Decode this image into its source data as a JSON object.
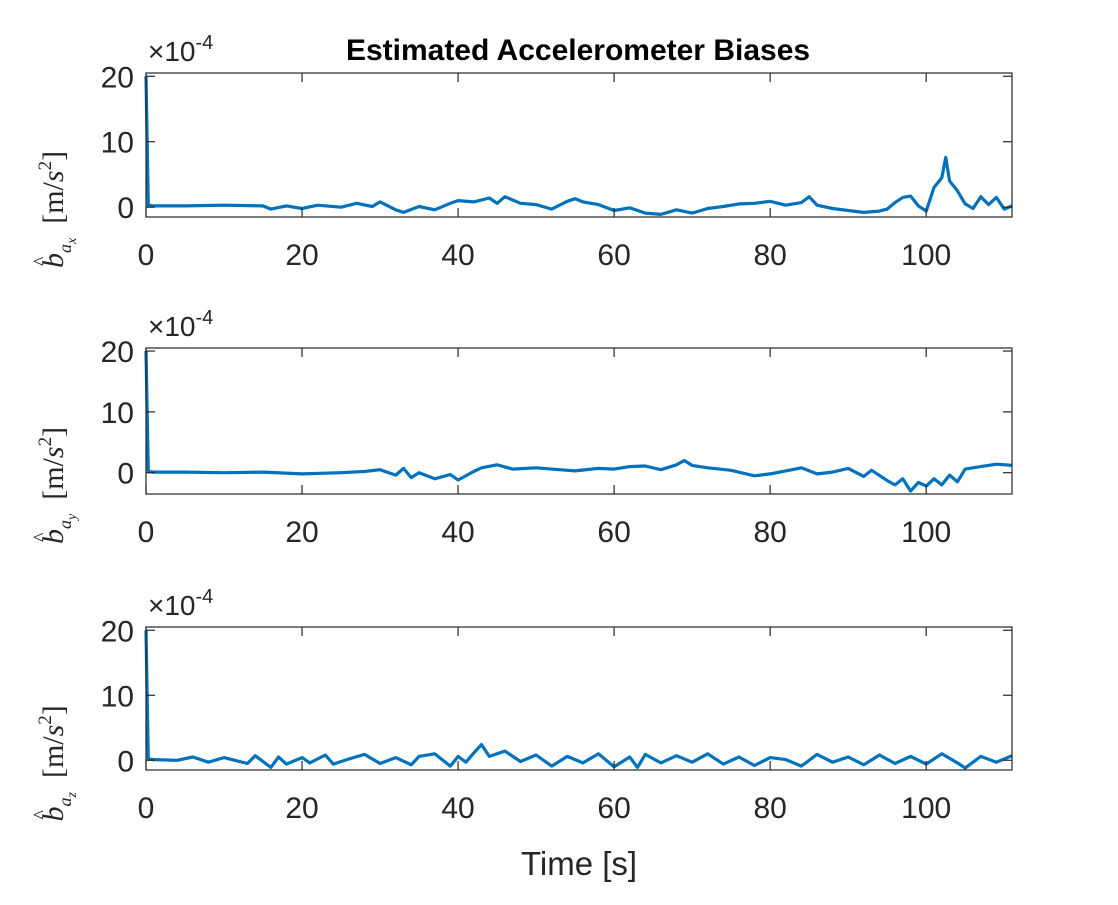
{
  "chart_data": {
    "type": "line",
    "title": "Estimated Accelerometer Biases",
    "xlabel": "Time [s]",
    "xlim": [
      0,
      111
    ],
    "x_ticks": [
      0,
      20,
      40,
      60,
      80,
      100
    ],
    "y_ticks": [
      0,
      10,
      20
    ],
    "y_multiplier": "×10",
    "y_multiplier_exp": "-4",
    "line_color": "#0072BD",
    "subplots": [
      {
        "ylabel": {
          "hat": "b",
          "sub": "a",
          "sub2": "x",
          "unit_open": "[m/",
          "unit_s": "s",
          "unit_exp": "2",
          "unit_close": "]"
        },
        "ylim": [
          -1.5,
          20.5
        ],
        "series": [
          {
            "x": [
              0,
              0.3,
              1,
              5,
              10,
              15,
              16,
              18,
              20,
              22,
              25,
              27,
              29,
              30,
              32,
              33,
              35,
              37,
              39,
              40,
              42,
              44,
              45,
              46,
              48,
              50,
              52,
              54,
              55,
              56,
              58,
              60,
              62,
              64,
              66,
              68,
              70,
              72,
              74,
              76,
              78,
              80,
              82,
              84,
              85,
              86,
              88,
              90,
              92,
              94,
              95,
              96,
              97,
              98,
              99,
              100,
              101,
              102,
              102.5,
              103,
              104,
              105,
              106,
              107,
              108,
              109,
              110,
              111
            ],
            "y": [
              20,
              0.3,
              0.2,
              0.2,
              0.3,
              0.2,
              -0.3,
              0.2,
              -0.2,
              0.3,
              0.0,
              0.6,
              0.1,
              0.8,
              -0.4,
              -0.8,
              0.1,
              -0.4,
              0.6,
              1.0,
              0.8,
              1.4,
              0.6,
              1.6,
              0.6,
              0.4,
              -0.3,
              0.9,
              1.3,
              0.8,
              0.4,
              -0.5,
              -0.1,
              -0.9,
              -1.1,
              -0.4,
              -0.9,
              -0.2,
              0.1,
              0.5,
              0.6,
              0.9,
              0.3,
              0.7,
              1.6,
              0.3,
              -0.2,
              -0.5,
              -0.8,
              -0.6,
              -0.3,
              0.7,
              1.5,
              1.7,
              0.2,
              -0.6,
              3.0,
              4.5,
              7.6,
              4.0,
              2.5,
              0.5,
              -0.2,
              1.6,
              0.4,
              1.5,
              -0.3,
              0.2
            ]
          }
        ]
      },
      {
        "ylabel": {
          "hat": "b",
          "sub": "a",
          "sub2": "y",
          "unit_open": "[m/",
          "unit_s": "s",
          "unit_exp": "2",
          "unit_close": "]"
        },
        "ylim": [
          -3.5,
          20.5
        ],
        "series": [
          {
            "x": [
              0,
              0.3,
              1,
              5,
              10,
              15,
              20,
              25,
              28,
              30,
              32,
              33,
              34,
              35,
              37,
              39,
              40,
              42,
              43,
              45,
              47,
              50,
              53,
              55,
              58,
              60,
              62,
              64,
              66,
              68,
              69,
              70,
              72,
              75,
              78,
              80,
              82,
              84,
              86,
              88,
              90,
              92,
              93,
              95,
              96,
              97,
              98,
              99,
              100,
              101,
              102,
              103,
              104,
              105,
              107,
              109,
              111
            ],
            "y": [
              20,
              0.2,
              0.1,
              0.1,
              0.0,
              0.1,
              -0.2,
              0.0,
              0.2,
              0.5,
              -0.4,
              0.7,
              -0.8,
              0.0,
              -1.0,
              -0.3,
              -1.2,
              0.2,
              0.8,
              1.3,
              0.6,
              0.8,
              0.5,
              0.3,
              0.7,
              0.6,
              1.0,
              1.1,
              0.5,
              1.3,
              2.0,
              1.2,
              0.8,
              0.4,
              -0.5,
              -0.2,
              0.3,
              0.8,
              -0.2,
              0.1,
              0.7,
              -0.6,
              0.4,
              -1.3,
              -2.0,
              -1.0,
              -3.0,
              -1.6,
              -2.2,
              -1.0,
              -2.0,
              -0.4,
              -1.5,
              0.6,
              1.0,
              1.4,
              1.2
            ]
          }
        ]
      },
      {
        "ylabel": {
          "hat": "b",
          "sub": "a",
          "sub2": "z",
          "unit_open": "[m/",
          "unit_s": "s",
          "unit_exp": "2",
          "unit_close": "]"
        },
        "ylim": [
          -1.5,
          20.5
        ],
        "series": [
          {
            "x": [
              0,
              0.3,
              1,
              4,
              6,
              8,
              10,
              13,
              14,
              16,
              17,
              18,
              20,
              21,
              23,
              24,
              26,
              28,
              30,
              32,
              34,
              35,
              37,
              39,
              40,
              41,
              42,
              43,
              44,
              46,
              48,
              50,
              52,
              54,
              56,
              58,
              60,
              62,
              63,
              64,
              66,
              68,
              70,
              72,
              74,
              76,
              78,
              80,
              82,
              84,
              86,
              88,
              90,
              92,
              94,
              96,
              98,
              100,
              102,
              104,
              105,
              107,
              109,
              111
            ],
            "y": [
              20,
              0.2,
              0.1,
              0.0,
              0.5,
              -0.3,
              0.4,
              -0.5,
              0.7,
              -1.1,
              0.5,
              -0.6,
              0.4,
              -0.4,
              0.8,
              -0.6,
              0.2,
              0.9,
              -0.5,
              0.4,
              -0.7,
              0.6,
              1.0,
              -0.9,
              0.6,
              -0.3,
              1.1,
              2.4,
              0.6,
              1.4,
              -0.2,
              0.8,
              -0.9,
              0.6,
              -0.4,
              1.0,
              -1.0,
              0.5,
              -1.1,
              0.9,
              -0.4,
              0.7,
              -0.3,
              1.0,
              -0.6,
              0.5,
              -0.8,
              0.4,
              0.1,
              -0.9,
              0.9,
              -0.3,
              0.5,
              -0.7,
              0.8,
              -0.5,
              0.6,
              -0.6,
              1.0,
              -0.4,
              -1.2,
              0.6,
              -0.3,
              0.7
            ]
          }
        ]
      }
    ]
  }
}
